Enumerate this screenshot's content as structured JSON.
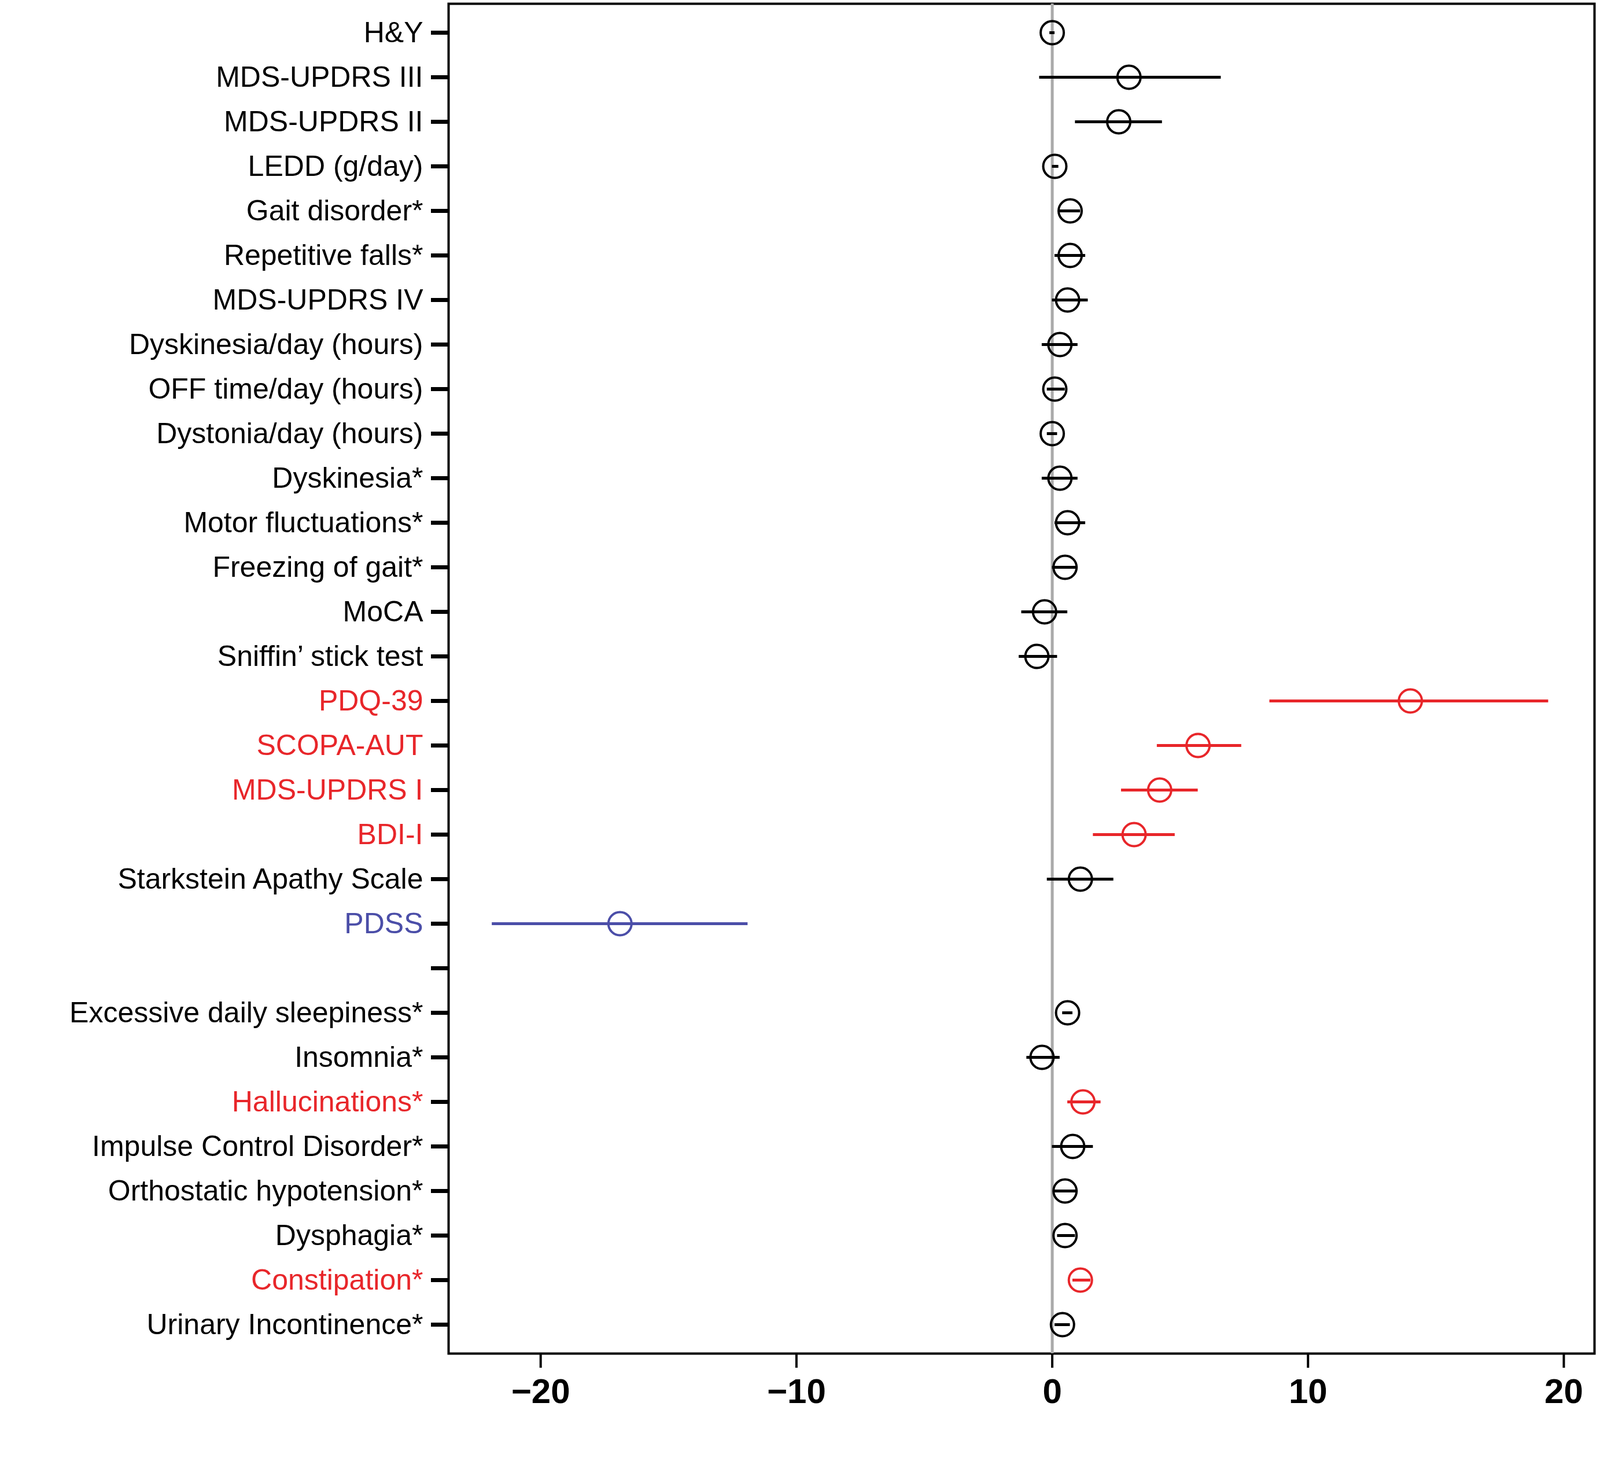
{
  "chart_data": {
    "type": "forest",
    "orientation": "horizontal",
    "categories": [
      "H&Y",
      "MDS-UPDRS III",
      "MDS-UPDRS II",
      "LEDD (g/day)",
      "Gait disorder*",
      "Repetitive falls*",
      "MDS-UPDRS IV",
      "Dyskinesia/day (hours)",
      "OFF time/day (hours)",
      "Dystonia/day (hours)",
      "Dyskinesia*",
      "Motor fluctuations*",
      "Freezing of gait*",
      "MoCA",
      "Sniffin’ stick test",
      "PDQ-39",
      "SCOPA-AUT",
      "MDS-UPDRS I",
      "BDI-I",
      "Starkstein Apathy Scale",
      "PDSS",
      null,
      "Excessive daily sleepiness*",
      "Insomnia*",
      "Hallucinations*",
      "Impulse Control Disorder*",
      "Orthostatic hypotension*",
      "Dysphagia*",
      "Constipation*",
      "Urinary Incontinence*"
    ],
    "values": [
      0.0,
      3.0,
      2.6,
      0.1,
      0.7,
      0.7,
      0.6,
      0.3,
      0.1,
      0.0,
      0.3,
      0.6,
      0.5,
      -0.3,
      -0.6,
      14.0,
      5.7,
      4.2,
      3.2,
      1.1,
      -16.9,
      null,
      0.6,
      -0.4,
      1.2,
      0.8,
      0.5,
      0.5,
      1.1,
      0.4
    ],
    "lower": [
      -0.1,
      -0.5,
      0.9,
      0.0,
      0.3,
      0.1,
      0.0,
      -0.4,
      -0.2,
      -0.2,
      -0.4,
      0.1,
      0.0,
      -1.2,
      -1.3,
      8.5,
      4.1,
      2.7,
      1.6,
      -0.2,
      -21.9,
      null,
      0.4,
      -1.0,
      0.6,
      0.0,
      0.1,
      0.2,
      0.8,
      0.1
    ],
    "upper": [
      0.1,
      6.6,
      4.3,
      0.25,
      1.1,
      1.3,
      1.4,
      1.0,
      0.5,
      0.2,
      1.0,
      1.3,
      1.0,
      0.6,
      0.2,
      19.4,
      7.4,
      5.7,
      4.8,
      2.4,
      -11.9,
      null,
      0.8,
      0.3,
      1.9,
      1.6,
      1.0,
      0.9,
      1.5,
      0.7
    ],
    "colors": [
      "#000000",
      "#000000",
      "#000000",
      "#000000",
      "#000000",
      "#000000",
      "#000000",
      "#000000",
      "#000000",
      "#000000",
      "#000000",
      "#000000",
      "#000000",
      "#000000",
      "#000000",
      "#e8262a",
      "#e8262a",
      "#e8262a",
      "#e8262a",
      "#000000",
      "#4b4ea8",
      null,
      "#000000",
      "#000000",
      "#e8262a",
      "#000000",
      "#000000",
      "#000000",
      "#e8262a",
      "#000000"
    ],
    "marker": "circle",
    "reference_line": 0,
    "xlim": [
      -23.6,
      21.2
    ],
    "xticks": [
      -20,
      -10,
      0,
      10,
      20
    ],
    "grid": false
  }
}
